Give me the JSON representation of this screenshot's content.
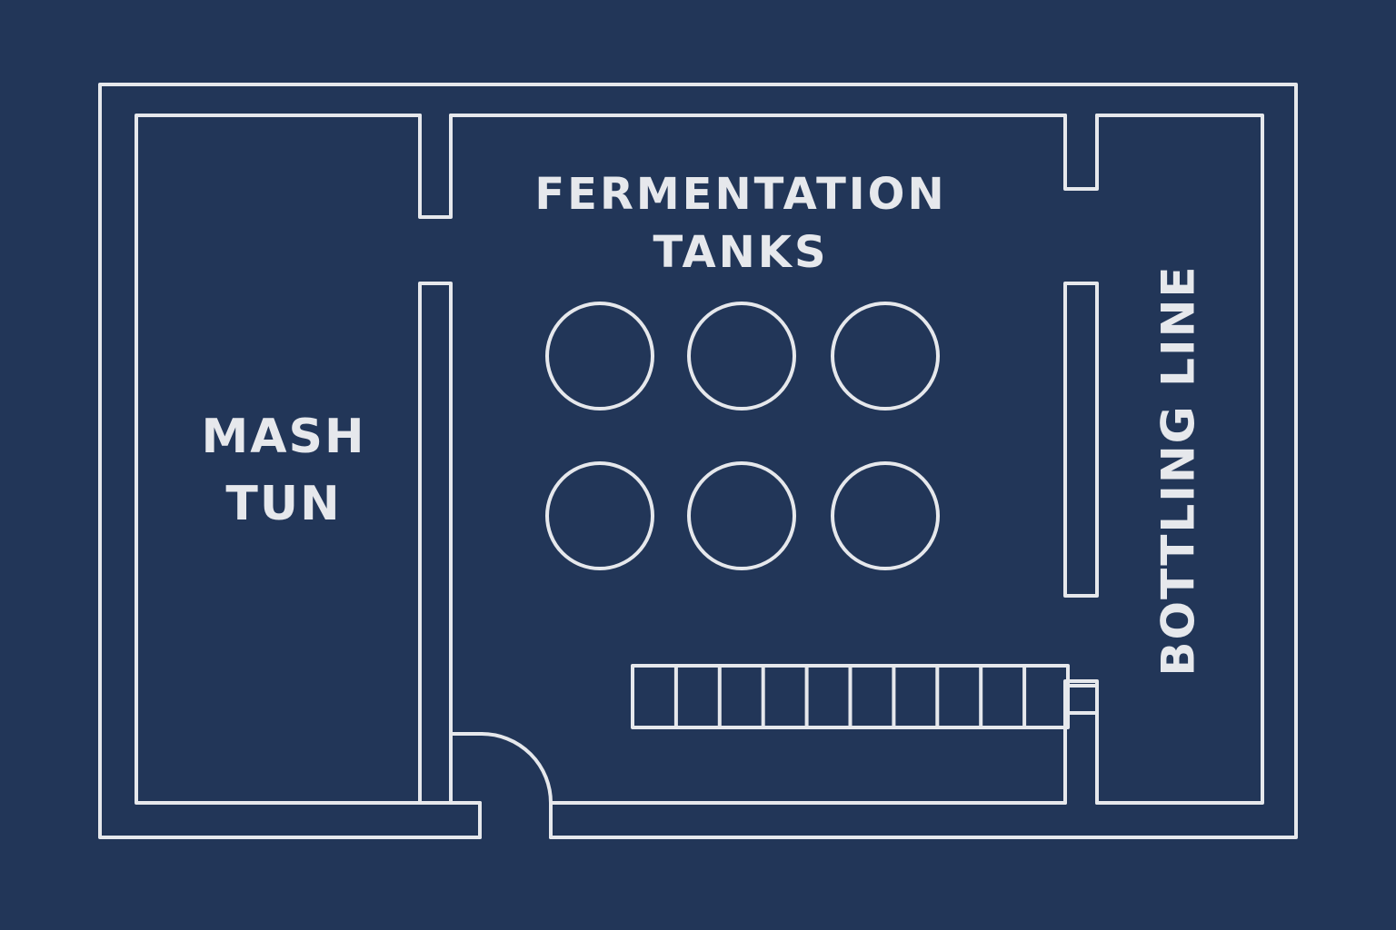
{
  "diagram": {
    "type": "floor-plan",
    "colors": {
      "background": "#223658",
      "line": "#e6e8ec"
    },
    "rooms": {
      "fermentation": {
        "label_line1": "FERMENTATION",
        "label_line2": "TANKS",
        "tank_count": 6,
        "tank_rows": 2,
        "tank_columns": 3
      },
      "mash": {
        "label_line1": "MASH",
        "label_line2": "TUN"
      },
      "bottling": {
        "label": "BOTTLING LINE",
        "conveyor_segments": 10
      }
    },
    "door": {
      "icon": "door-swing-icon"
    }
  }
}
